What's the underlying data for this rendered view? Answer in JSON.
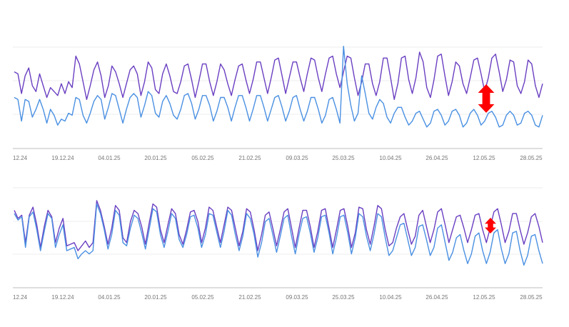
{
  "chart_data": [
    {
      "type": "line",
      "title": "",
      "xlabel": "",
      "ylabel": "",
      "tick_labels": [
        "12.24",
        "19.12.24",
        "04.01.25",
        "20.01.25",
        "05.02.25",
        "21.02.25",
        "09.03.25",
        "25.03.25",
        "10.04.25",
        "26.04.25",
        "12.05.25",
        "28.05.25"
      ],
      "grid": true,
      "ylim": [
        0,
        100
      ],
      "annotation": {
        "type": "double-arrow",
        "color": "#ff0000",
        "x_tick": "12.05.25"
      },
      "series": [
        {
          "color": "#6a3fc2",
          "values": [
            72,
            70,
            50,
            68,
            76,
            58,
            52,
            70,
            58,
            46,
            56,
            52,
            48,
            60,
            50,
            62,
            56,
            88,
            80,
            62,
            44,
            58,
            74,
            82,
            68,
            46,
            58,
            78,
            72,
            60,
            46,
            60,
            74,
            78,
            70,
            48,
            62,
            82,
            76,
            54,
            50,
            70,
            80,
            68,
            52,
            50,
            62,
            78,
            80,
            64,
            46,
            62,
            80,
            80,
            62,
            48,
            62,
            80,
            74,
            60,
            48,
            64,
            78,
            80,
            64,
            50,
            64,
            82,
            82,
            66,
            50,
            66,
            84,
            86,
            68,
            50,
            66,
            82,
            82,
            66,
            52,
            70,
            86,
            84,
            66,
            52,
            70,
            86,
            88,
            70,
            56,
            72,
            88,
            86,
            66,
            48,
            62,
            80,
            80,
            60,
            48,
            62,
            86,
            86,
            66,
            44,
            60,
            86,
            88,
            64,
            50,
            66,
            92,
            82,
            56,
            46,
            64,
            88,
            90,
            68,
            48,
            62,
            82,
            78,
            60,
            50,
            66,
            84,
            86,
            70,
            52,
            66,
            86,
            90,
            72,
            52,
            64,
            84,
            82,
            58,
            50,
            62,
            84,
            80,
            58,
            46,
            60
          ]
        },
        {
          "color": "#4a90e2",
          "values": [
            46,
            44,
            22,
            44,
            42,
            26,
            34,
            44,
            34,
            20,
            34,
            28,
            18,
            24,
            22,
            30,
            28,
            46,
            44,
            28,
            20,
            30,
            42,
            48,
            44,
            24,
            36,
            50,
            48,
            34,
            20,
            34,
            46,
            50,
            46,
            26,
            38,
            52,
            48,
            30,
            26,
            42,
            48,
            40,
            28,
            24,
            34,
            48,
            50,
            40,
            24,
            34,
            48,
            48,
            38,
            22,
            32,
            46,
            46,
            36,
            22,
            36,
            48,
            48,
            36,
            22,
            34,
            48,
            48,
            36,
            22,
            34,
            46,
            48,
            36,
            22,
            32,
            46,
            48,
            34,
            22,
            32,
            46,
            46,
            34,
            20,
            28,
            44,
            46,
            34,
            20,
            98,
            60,
            38,
            22,
            30,
            68,
            50,
            30,
            24,
            36,
            44,
            40,
            26,
            20,
            30,
            36,
            36,
            26,
            18,
            22,
            30,
            32,
            24,
            16,
            20,
            32,
            34,
            28,
            18,
            22,
            32,
            34,
            28,
            16,
            20,
            30,
            34,
            28,
            18,
            22,
            30,
            32,
            26,
            16,
            18,
            28,
            32,
            28,
            18,
            20,
            30,
            32,
            28,
            18,
            16,
            28
          ]
        }
      ]
    },
    {
      "type": "line",
      "title": "",
      "xlabel": "",
      "ylabel": "",
      "tick_labels": [
        "12.24",
        "19.12.24",
        "04.01.25",
        "20.01.25",
        "05.02.25",
        "21.02.25",
        "09.03.25",
        "25.03.25",
        "10.04.25",
        "26.04.25",
        "12.05.25",
        "28.05.25"
      ],
      "grid": true,
      "ylim": [
        0,
        100
      ],
      "annotation": {
        "type": "double-arrow",
        "color": "#ff0000",
        "x_tick": "12.05.25"
      },
      "series": [
        {
          "color": "#6a3fc2",
          "values": [
            80,
            70,
            74,
            40,
            74,
            84,
            62,
            34,
            60,
            80,
            72,
            40,
            58,
            70,
            36,
            38,
            40,
            30,
            36,
            42,
            34,
            40,
            92,
            80,
            60,
            38,
            58,
            86,
            80,
            46,
            40,
            66,
            80,
            76,
            60,
            38,
            64,
            88,
            84,
            56,
            40,
            62,
            82,
            76,
            50,
            38,
            56,
            78,
            80,
            66,
            40,
            58,
            84,
            80,
            60,
            40,
            62,
            84,
            80,
            58,
            36,
            54,
            82,
            78,
            56,
            30,
            50,
            74,
            78,
            58,
            36,
            56,
            78,
            82,
            58,
            34,
            58,
            80,
            80,
            60,
            34,
            54,
            80,
            82,
            58,
            34,
            56,
            80,
            82,
            60,
            34,
            52,
            84,
            82,
            56,
            38,
            60,
            86,
            82,
            56,
            36,
            40,
            58,
            72,
            76,
            56,
            38,
            48,
            74,
            80,
            60,
            40,
            56,
            78,
            82,
            62,
            40,
            56,
            72,
            74,
            58,
            40,
            56,
            74,
            76,
            56,
            40,
            58,
            78,
            82,
            62,
            40,
            54,
            76,
            76,
            56,
            38,
            52,
            72,
            76,
            60,
            40
          ]
        },
        {
          "color": "#4a90e2",
          "values": [
            76,
            68,
            72,
            34,
            72,
            78,
            56,
            30,
            54,
            76,
            70,
            34,
            50,
            62,
            30,
            32,
            34,
            20,
            26,
            30,
            26,
            30,
            88,
            76,
            56,
            32,
            50,
            80,
            74,
            40,
            36,
            58,
            74,
            70,
            52,
            32,
            56,
            82,
            78,
            50,
            34,
            54,
            76,
            70,
            44,
            34,
            50,
            72,
            74,
            58,
            34,
            50,
            76,
            74,
            54,
            34,
            54,
            80,
            74,
            50,
            30,
            48,
            76,
            70,
            50,
            22,
            40,
            66,
            70,
            50,
            28,
            48,
            70,
            74,
            48,
            26,
            50,
            70,
            72,
            52,
            28,
            46,
            72,
            74,
            52,
            26,
            46,
            72,
            74,
            52,
            26,
            46,
            76,
            72,
            48,
            30,
            50,
            76,
            72,
            46,
            24,
            30,
            46,
            62,
            64,
            44,
            24,
            34,
            60,
            62,
            44,
            24,
            34,
            58,
            62,
            40,
            18,
            28,
            46,
            50,
            30,
            14,
            26,
            48,
            52,
            30,
            14,
            28,
            52,
            56,
            32,
            14,
            26,
            52,
            54,
            30,
            12,
            24,
            48,
            50,
            30,
            14
          ]
        }
      ]
    }
  ]
}
